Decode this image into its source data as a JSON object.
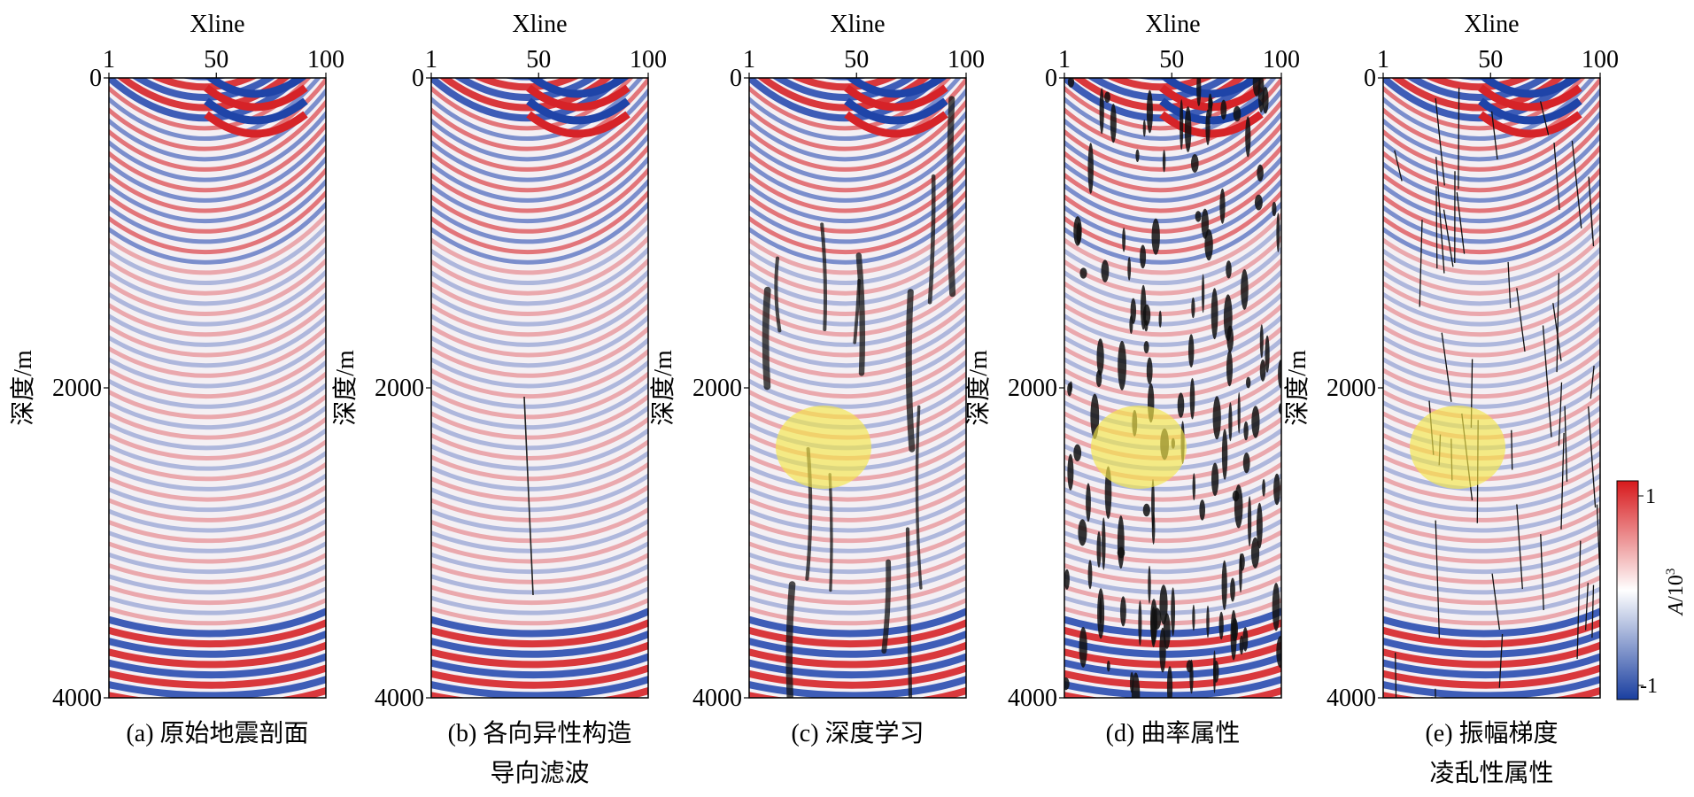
{
  "figure": {
    "x_axis_title": "Xline",
    "x_ticks": [
      "1",
      "50",
      "100"
    ],
    "y_axis_title": "深度/m",
    "y_ticks": [
      "0",
      "2000",
      "4000"
    ],
    "panels": [
      {
        "id": "a",
        "caption_line1": "(a) 原始地震剖面",
        "caption_line2": "",
        "overlay": "none",
        "highlight": false
      },
      {
        "id": "b",
        "caption_line1": "(b) 各向异性构造",
        "caption_line2": "导向滤波",
        "overlay": "thin-line",
        "highlight": false
      },
      {
        "id": "c",
        "caption_line1": "(c) 深度学习",
        "caption_line2": "",
        "overlay": "blurry-faults",
        "highlight": true
      },
      {
        "id": "d",
        "caption_line1": "(d) 曲率属性",
        "caption_line2": "",
        "overlay": "dense-blobs",
        "highlight": true
      },
      {
        "id": "e",
        "caption_line1": "(e) 振幅梯度",
        "caption_line2": "凌乱性属性",
        "overlay": "thin-faults",
        "highlight": true
      }
    ],
    "colorbar": {
      "max_label": "1",
      "min_label": "-1",
      "title_italic": "A",
      "title_rest": "/10",
      "title_sup": "3",
      "colors": {
        "top": "#d7191c",
        "mid": "#ffffff",
        "bottom": "#1a3fa0"
      }
    },
    "highlight_color": "#f5e74a"
  }
}
